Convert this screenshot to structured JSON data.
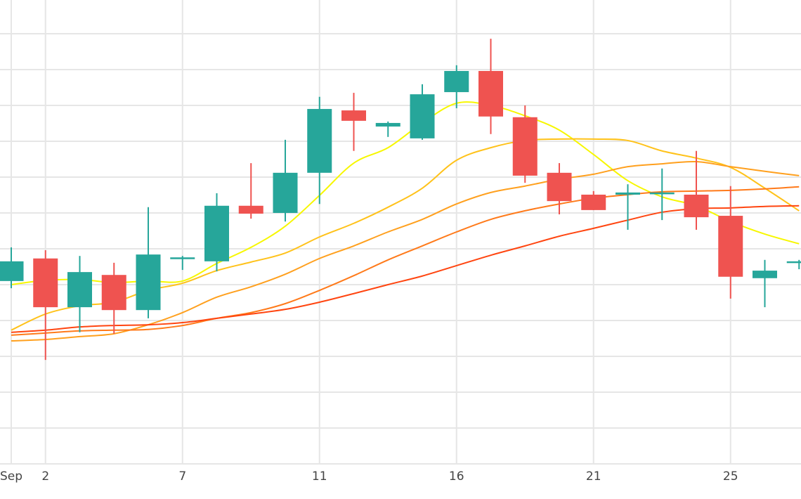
{
  "chart_data": {
    "type": "candlestick",
    "title": "",
    "xlabel": "",
    "ylabel": "",
    "ylim": [
      0,
      129.4
    ],
    "grid": true,
    "y_grid_step": 10,
    "categories": [
      "Sep 1",
      "Sep 2",
      "",
      "",
      "",
      "Sep 7",
      "",
      "",
      "",
      "Sep 11",
      "",
      "",
      "",
      "Sep 16",
      "",
      "",
      "",
      "Sep 21",
      "",
      "",
      "",
      "Sep 25",
      "",
      ""
    ],
    "x_tick_labels": [
      {
        "index": 0,
        "label": "Sep"
      },
      {
        "index": 1,
        "label": "2"
      },
      {
        "index": 5,
        "label": "7"
      },
      {
        "index": 9,
        "label": "11"
      },
      {
        "index": 13,
        "label": "16"
      },
      {
        "index": 17,
        "label": "21"
      },
      {
        "index": 21,
        "label": "25"
      }
    ],
    "candles": [
      {
        "open": 51.0,
        "close": 56.5,
        "high": 60.4,
        "low": 49.0
      },
      {
        "open": 57.3,
        "close": 43.7,
        "high": 59.6,
        "low": 29.0
      },
      {
        "open": 43.7,
        "close": 53.5,
        "high": 58.0,
        "low": 36.7
      },
      {
        "open": 52.7,
        "close": 42.9,
        "high": 56.1,
        "low": 36.3
      },
      {
        "open": 42.9,
        "close": 58.4,
        "high": 71.6,
        "low": 40.6
      },
      {
        "open": 57.2,
        "close": 57.6,
        "high": 58.0,
        "low": 54.1
      },
      {
        "open": 56.5,
        "close": 72.0,
        "high": 75.5,
        "low": 53.7
      },
      {
        "open": 72.0,
        "close": 69.8,
        "high": 83.9,
        "low": 68.4
      },
      {
        "open": 70.0,
        "close": 81.2,
        "high": 90.4,
        "low": 67.6
      },
      {
        "open": 81.2,
        "close": 99.0,
        "high": 102.4,
        "low": 72.5
      },
      {
        "open": 98.6,
        "close": 95.7,
        "high": 103.5,
        "low": 87.3
      },
      {
        "open": 94.1,
        "close": 95.1,
        "high": 95.5,
        "low": 91.2
      },
      {
        "open": 90.8,
        "close": 103.1,
        "high": 105.9,
        "low": 90.4
      },
      {
        "open": 103.7,
        "close": 109.6,
        "high": 111.2,
        "low": 99.2
      },
      {
        "open": 109.6,
        "close": 96.9,
        "high": 118.6,
        "low": 92.0
      },
      {
        "open": 96.7,
        "close": 80.4,
        "high": 100.0,
        "low": 78.4
      },
      {
        "open": 81.2,
        "close": 73.3,
        "high": 83.9,
        "low": 69.6
      },
      {
        "open": 75.1,
        "close": 70.8,
        "high": 76.1,
        "low": 70.8
      },
      {
        "open": 75.1,
        "close": 75.7,
        "high": 78.0,
        "low": 65.3
      },
      {
        "open": 75.5,
        "close": 75.7,
        "high": 82.4,
        "low": 68.0
      },
      {
        "open": 75.1,
        "close": 68.8,
        "high": 87.3,
        "low": 65.3
      },
      {
        "open": 69.2,
        "close": 52.2,
        "high": 77.5,
        "low": 46.1
      },
      {
        "open": 51.8,
        "close": 53.9,
        "high": 56.9,
        "low": 43.7
      },
      {
        "open": 56.1,
        "close": 56.5,
        "high": 56.9,
        "low": 54.3
      }
    ],
    "increasing_color": "#26a69a",
    "decreasing_color": "#ef5350",
    "series": [
      {
        "color": "#f7f700",
        "values": [
          50.0,
          51.2,
          51.4,
          50.6,
          51.0,
          51.0,
          55.9,
          60.4,
          66.3,
          74.9,
          83.9,
          88.2,
          95.1,
          100.6,
          100.0,
          97.1,
          93.1,
          86.3,
          79.0,
          74.5,
          72.0,
          67.6,
          64.1,
          61.4
        ]
      },
      {
        "color": "#ffc21a",
        "values": [
          37.3,
          41.8,
          44.1,
          45.1,
          48.4,
          50.4,
          53.9,
          56.3,
          58.8,
          63.3,
          67.1,
          71.6,
          76.9,
          84.7,
          88.2,
          90.2,
          90.6,
          90.6,
          90.2,
          87.3,
          85.3,
          82.7,
          76.9,
          70.6
        ]
      },
      {
        "color": "#ffa01e",
        "values": [
          34.3,
          34.7,
          35.5,
          36.3,
          38.8,
          42.2,
          46.5,
          49.4,
          52.9,
          57.3,
          60.8,
          64.7,
          68.2,
          72.5,
          75.7,
          77.5,
          79.4,
          80.8,
          82.9,
          83.7,
          84.3,
          82.9,
          81.6,
          80.4
        ]
      },
      {
        "color": "#ff7a1a",
        "values": [
          35.9,
          36.5,
          37.1,
          37.3,
          37.5,
          38.6,
          40.6,
          42.2,
          44.7,
          48.4,
          52.5,
          56.9,
          60.8,
          64.7,
          68.2,
          70.6,
          72.5,
          74.1,
          75.1,
          75.9,
          76.1,
          76.3,
          76.7,
          77.3
        ]
      },
      {
        "color": "#ff4510",
        "values": [
          36.7,
          37.3,
          38.2,
          38.6,
          38.8,
          39.4,
          40.6,
          41.8,
          43.1,
          45.1,
          47.5,
          50.0,
          52.4,
          55.3,
          58.2,
          60.8,
          63.5,
          65.7,
          68.0,
          70.2,
          71.2,
          71.4,
          71.8,
          72.0
        ]
      }
    ]
  }
}
